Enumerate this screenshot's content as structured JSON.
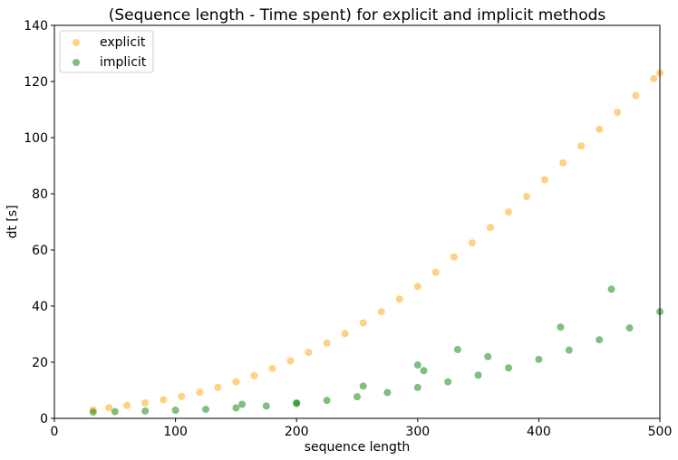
{
  "chart_data": {
    "type": "scatter",
    "title": "(Sequence length - Time spent) for explicit and implicit methods",
    "xlabel": "sequence length",
    "ylabel": "dt [s]",
    "xlim": [
      0,
      500
    ],
    "ylim": [
      0,
      140
    ],
    "xticks": [
      "0",
      "100",
      "200",
      "300",
      "400",
      "500"
    ],
    "yticks": [
      "0",
      "20",
      "40",
      "60",
      "80",
      "100",
      "120",
      "140"
    ],
    "grid": false,
    "legend_position": "top-left",
    "series": [
      {
        "name": "explicit",
        "color": "#ffa500",
        "points": [
          [
            32,
            3.0
          ],
          [
            45,
            3.8
          ],
          [
            60,
            4.6
          ],
          [
            75,
            5.5
          ],
          [
            90,
            6.6
          ],
          [
            105,
            7.8
          ],
          [
            120,
            9.3
          ],
          [
            135,
            11.0
          ],
          [
            150,
            13.0
          ],
          [
            165,
            15.2
          ],
          [
            180,
            17.8
          ],
          [
            195,
            20.5
          ],
          [
            210,
            23.5
          ],
          [
            225,
            26.8
          ],
          [
            240,
            30.2
          ],
          [
            255,
            34.0
          ],
          [
            270,
            38.0
          ],
          [
            285,
            42.5
          ],
          [
            300,
            47.0
          ],
          [
            315,
            52.0
          ],
          [
            330,
            57.5
          ],
          [
            345,
            62.5
          ],
          [
            360,
            68.0
          ],
          [
            375,
            73.5
          ],
          [
            390,
            79.0
          ],
          [
            405,
            85.0
          ],
          [
            420,
            91.0
          ],
          [
            435,
            97.0
          ],
          [
            450,
            103.0
          ],
          [
            465,
            109.0
          ],
          [
            480,
            115.0
          ],
          [
            495,
            121.0
          ],
          [
            500,
            123.0
          ]
        ]
      },
      {
        "name": "implicit",
        "color": "#008000",
        "points": [
          [
            32,
            2.2
          ],
          [
            50,
            2.4
          ],
          [
            75,
            2.6
          ],
          [
            100,
            2.9
          ],
          [
            125,
            3.2
          ],
          [
            150,
            3.7
          ],
          [
            175,
            4.4
          ],
          [
            200,
            5.3
          ],
          [
            225,
            6.4
          ],
          [
            250,
            7.7
          ],
          [
            275,
            9.2
          ],
          [
            300,
            11.0
          ],
          [
            325,
            13.0
          ],
          [
            350,
            15.4
          ],
          [
            375,
            18.0
          ],
          [
            400,
            21.0
          ],
          [
            425,
            24.3
          ],
          [
            450,
            28.0
          ],
          [
            475,
            32.2
          ],
          [
            500,
            38.0
          ],
          [
            300,
            19.0
          ],
          [
            305,
            17.0
          ],
          [
            333,
            24.5
          ],
          [
            358,
            22.0
          ],
          [
            418,
            32.5
          ],
          [
            460,
            46.0
          ],
          [
            255,
            11.5
          ],
          [
            155,
            5.0
          ],
          [
            200,
            5.5
          ]
        ]
      }
    ]
  }
}
